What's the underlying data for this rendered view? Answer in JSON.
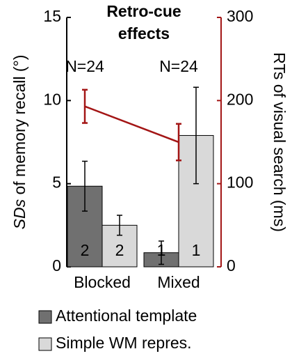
{
  "chart_data": {
    "type": "bar",
    "title": [
      "Retro-cue",
      "effects"
    ],
    "ylabel": {
      "italic": "SDs",
      "text": " of memory recall (°)"
    },
    "y2label": "RTs of visual search (ms)",
    "categories": [
      "Blocked",
      "Mixed"
    ],
    "annotations": [
      "N=24",
      "N=24"
    ],
    "series": [
      {
        "name": "Attentional template",
        "color": "#707070",
        "values": [
          4.85,
          0.85
        ],
        "errors": [
          1.5,
          0.7
        ],
        "counts": [
          "2",
          "1"
        ]
      },
      {
        "name": "Simple WM repres.",
        "color": "#d9d9d9",
        "values": [
          2.5,
          7.9
        ],
        "errors": [
          0.6,
          2.9
        ],
        "counts": [
          "2",
          "1"
        ]
      },
      {
        "color": "#a31515",
        "values": [
          193,
          150
        ],
        "errors": [
          20,
          22
        ],
        "axis": "y2"
      }
    ],
    "ylim": [
      0,
      15
    ],
    "yticks": [
      0,
      5,
      10,
      15
    ],
    "y2lim": [
      0,
      300
    ],
    "y2ticks": [
      0,
      100,
      200,
      300
    ],
    "y2color": "#a31515"
  }
}
